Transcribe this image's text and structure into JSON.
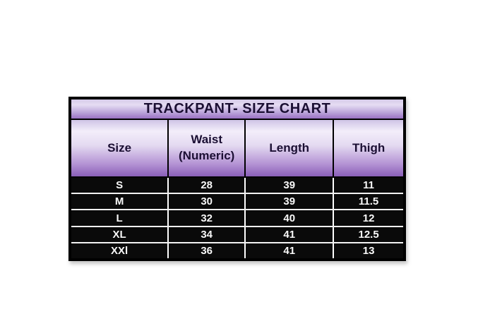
{
  "page": {
    "background": "#ffffff"
  },
  "table": {
    "title": "TRACKPANT- SIZE CHART",
    "headers": [
      "Size",
      "Waist\n(Numeric)",
      "Length",
      "Thigh"
    ]
  },
  "chart_data": {
    "type": "table",
    "title": "TRACKPANT- SIZE CHART",
    "columns": [
      "Size",
      "Waist (Numeric)",
      "Length",
      "Thigh"
    ],
    "rows": [
      [
        "S",
        "28",
        "39",
        "11"
      ],
      [
        "M",
        "30",
        "39",
        "11.5"
      ],
      [
        "L",
        "32",
        "40",
        "12"
      ],
      [
        "XL",
        "34",
        "41",
        "12.5"
      ],
      [
        "XXl",
        "36",
        "41",
        "13"
      ]
    ]
  },
  "colors": {
    "border": "#000000",
    "header_text": "#1b0f33",
    "data_text": "#f8f8f8",
    "data_row_bg": "#0a0a0a",
    "purple_light": "#f3eefa",
    "purple_mid": "#b493d4",
    "purple_dark": "#8a5fb8",
    "row_divider": "#ffffff"
  }
}
